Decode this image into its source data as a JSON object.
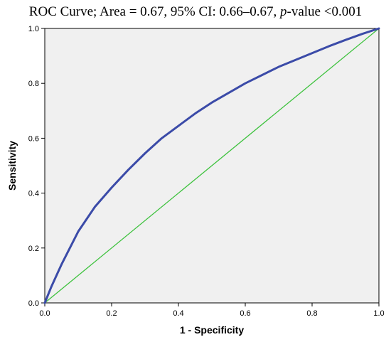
{
  "title": {
    "prefix": "ROC Curve; Area = 0.67, 95% CI: 0.66–0.67, ",
    "p_symbol": "p",
    "suffix": "-value <0.001"
  },
  "chart_data": {
    "type": "line",
    "title": "ROC Curve; Area = 0.67, 95% CI: 0.66–0.67, p-value <0.001",
    "xlabel": "1 - Specificity",
    "ylabel": "Sensitivity",
    "xlim": [
      0,
      1
    ],
    "ylim": [
      0,
      1
    ],
    "x_ticks": [
      "0.0",
      "0.2",
      "0.4",
      "0.6",
      "0.8",
      "1.0"
    ],
    "y_ticks": [
      "0.0",
      "0.2",
      "0.4",
      "0.6",
      "0.8",
      "1.0"
    ],
    "grid": false,
    "background_color": "#f0f0f0",
    "series": [
      {
        "color": "#3b4ba8",
        "x": [
          0.0,
          0.02,
          0.05,
          0.1,
          0.15,
          0.2,
          0.25,
          0.3,
          0.35,
          0.4,
          0.45,
          0.5,
          0.55,
          0.6,
          0.65,
          0.7,
          0.75,
          0.8,
          0.85,
          0.9,
          0.95,
          1.0
        ],
        "y": [
          0.0,
          0.06,
          0.14,
          0.26,
          0.35,
          0.42,
          0.485,
          0.545,
          0.6,
          0.645,
          0.69,
          0.73,
          0.765,
          0.8,
          0.83,
          0.86,
          0.885,
          0.91,
          0.935,
          0.958,
          0.98,
          1.0
        ]
      },
      {
        "color": "#3ec23e",
        "x": [
          0.0,
          1.0
        ],
        "y": [
          0.0,
          1.0
        ]
      }
    ]
  }
}
